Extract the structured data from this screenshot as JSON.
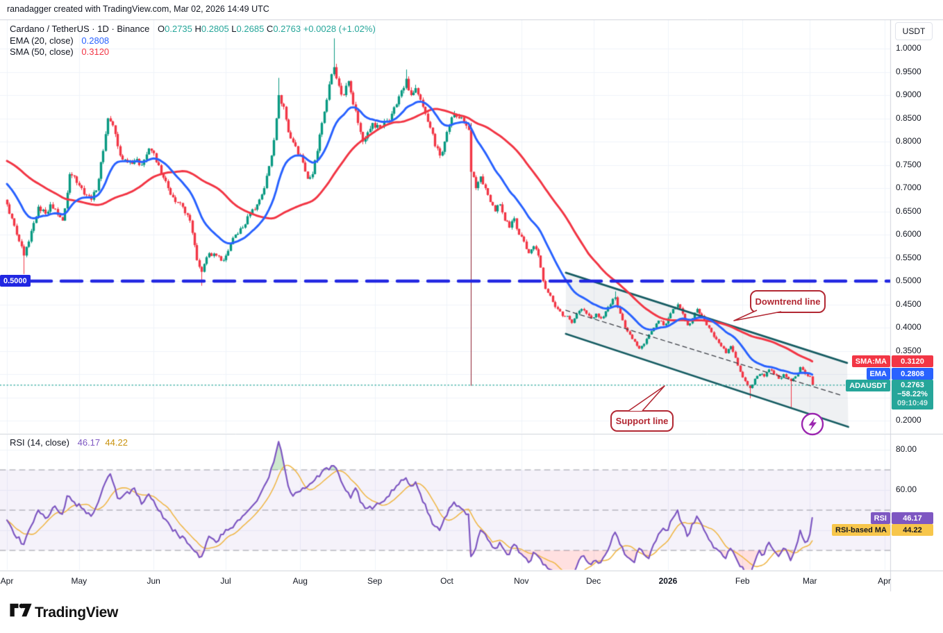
{
  "attribution": "ranadagger created with TradingView.com, Mar 02, 2026 14:49 UTC",
  "legend": {
    "symbol": "Cardano / TetherUS · 1D · Binance",
    "open_label": "O",
    "open": "0.2735",
    "high_label": "H",
    "high": "0.2805",
    "low_label": "L",
    "low": "0.2685",
    "close_label": "C",
    "close": "0.2763",
    "change": "+0.0028 (+1.02%)",
    "ema_label": "EMA (20, close)",
    "ema_value": "0.2808",
    "sma_label": "SMA (50, close)",
    "sma_value": "0.3120"
  },
  "rsi_legend": {
    "label": "RSI (14, close)",
    "value": "46.17",
    "ma_value": "44.22"
  },
  "price_axis": {
    "currency": "USDT",
    "level_badge": "0.5000"
  },
  "badges": {
    "sma": {
      "label": "SMA:MA",
      "value": "0.3120"
    },
    "ema": {
      "label": "EMA",
      "value": "0.2808"
    },
    "symbol": {
      "label": "ADAUSDT",
      "price": "0.2763",
      "change": "−58.22%",
      "countdown": "09:10:49"
    },
    "rsi": {
      "label": "RSI",
      "value": "46.17"
    },
    "rsi_ma": {
      "label": "RSI-based MA",
      "value": "44.22"
    }
  },
  "annotations": {
    "downtrend_label": "Downtrend line",
    "support_label": "Support line"
  },
  "footer": {
    "brand": "TradingView"
  },
  "colors": {
    "text": "#131722",
    "up": "#089981",
    "down": "#f23645",
    "ema": "#2962ff",
    "sma": "#f23645",
    "ohlc_value": "#26a69a",
    "level": "#2127e2",
    "channel": "#175d63",
    "channel_fill": "rgba(130,145,160,0.13)",
    "mid_dash": "#3c3f46",
    "price_line": "#26a69a",
    "rsi": "#7e57c2",
    "rsi_ma": "#f0b84a",
    "rsi_ma_text": "#c9920e",
    "rsi_band_fill": "rgba(126,87,194,0.08)",
    "band_dash": "#9598a1",
    "overbought_fill": "rgba(76,175,80,0.28)",
    "oversold_fill": "rgba(255,82,82,0.18)",
    "grid": "#f0f3fa",
    "separator": "#d1d4dc",
    "badge_symbol": "#26a69a",
    "badge_yellow": "#f7c64b",
    "annotation": "#b22833",
    "lightning": "#9c27b0"
  },
  "chart_data": {
    "type": "candlestick",
    "symbol": "ADAUSDT",
    "exchange": "Binance",
    "interval": "1D",
    "title": "Cardano / TetherUS · 1D · Binance",
    "current": {
      "open": 0.2735,
      "high": 0.2805,
      "low": 0.2685,
      "close": 0.2763,
      "change": "+0.0028",
      "change_pct": "+1.02%"
    },
    "indicators": {
      "ema20": 0.2808,
      "sma50": 0.312,
      "rsi14": 46.17,
      "rsi_based_ma": 44.22
    },
    "horizontal_level": 0.5,
    "price_line": 0.2763,
    "price_ticks": [
      1.0,
      0.95,
      0.9,
      0.85,
      0.8,
      0.75,
      0.7,
      0.65,
      0.6,
      0.55,
      0.5,
      0.45,
      0.4,
      0.35,
      0.3,
      0.25,
      0.2
    ],
    "months": [
      {
        "label": "Apr",
        "day": 0,
        "bold": false
      },
      {
        "label": "May",
        "day": 30,
        "bold": false
      },
      {
        "label": "Jun",
        "day": 61,
        "bold": false
      },
      {
        "label": "Jul",
        "day": 91,
        "bold": false
      },
      {
        "label": "Aug",
        "day": 122,
        "bold": false
      },
      {
        "label": "Sep",
        "day": 153,
        "bold": false
      },
      {
        "label": "Oct",
        "day": 183,
        "bold": false
      },
      {
        "label": "Nov",
        "day": 214,
        "bold": false
      },
      {
        "label": "Dec",
        "day": 244,
        "bold": false
      },
      {
        "label": "2026",
        "day": 275,
        "bold": true
      },
      {
        "label": "Feb",
        "day": 306,
        "bold": false
      },
      {
        "label": "Mar",
        "day": 334,
        "bold": false
      },
      {
        "label": "Apr",
        "day": 365,
        "bold": false
      }
    ],
    "prehistory_keypoints": [
      [
        -50,
        0.78
      ],
      [
        -35,
        0.81
      ],
      [
        -20,
        0.76
      ],
      [
        -10,
        0.71
      ],
      [
        -5,
        0.695
      ],
      [
        -1,
        0.675
      ]
    ],
    "close_keypoints": [
      [
        0,
        0.665
      ],
      [
        2,
        0.635
      ],
      [
        4,
        0.6
      ],
      [
        7,
        0.555
      ],
      [
        9,
        0.585
      ],
      [
        11,
        0.625
      ],
      [
        13,
        0.66
      ],
      [
        16,
        0.645
      ],
      [
        18,
        0.665
      ],
      [
        20,
        0.655
      ],
      [
        23,
        0.63
      ],
      [
        25,
        0.69
      ],
      [
        26,
        0.73
      ],
      [
        28,
        0.725
      ],
      [
        31,
        0.7
      ],
      [
        33,
        0.685
      ],
      [
        35,
        0.675
      ],
      [
        37,
        0.695
      ],
      [
        38,
        0.72
      ],
      [
        40,
        0.78
      ],
      [
        42,
        0.85
      ],
      [
        44,
        0.835
      ],
      [
        46,
        0.79
      ],
      [
        47,
        0.77
      ],
      [
        50,
        0.755
      ],
      [
        53,
        0.76
      ],
      [
        56,
        0.75
      ],
      [
        59,
        0.785
      ],
      [
        61,
        0.775
      ],
      [
        64,
        0.73
      ],
      [
        67,
        0.7
      ],
      [
        70,
        0.67
      ],
      [
        73,
        0.66
      ],
      [
        76,
        0.63
      ],
      [
        79,
        0.545
      ],
      [
        81,
        0.52
      ],
      [
        84,
        0.56
      ],
      [
        87,
        0.555
      ],
      [
        90,
        0.545
      ],
      [
        92,
        0.565
      ],
      [
        95,
        0.6
      ],
      [
        98,
        0.615
      ],
      [
        101,
        0.645
      ],
      [
        104,
        0.665
      ],
      [
        107,
        0.7
      ],
      [
        110,
        0.77
      ],
      [
        112,
        0.85
      ],
      [
        113,
        0.9
      ],
      [
        115,
        0.875
      ],
      [
        117,
        0.82
      ],
      [
        120,
        0.79
      ],
      [
        123,
        0.755
      ],
      [
        125,
        0.72
      ],
      [
        127,
        0.73
      ],
      [
        129,
        0.78
      ],
      [
        131,
        0.84
      ],
      [
        133,
        0.89
      ],
      [
        135,
        0.945
      ],
      [
        136,
        0.96
      ],
      [
        138,
        0.92
      ],
      [
        140,
        0.9
      ],
      [
        142,
        0.93
      ],
      [
        144,
        0.88
      ],
      [
        146,
        0.84
      ],
      [
        148,
        0.8
      ],
      [
        150,
        0.82
      ],
      [
        152,
        0.84
      ],
      [
        155,
        0.83
      ],
      [
        158,
        0.845
      ],
      [
        160,
        0.86
      ],
      [
        162,
        0.88
      ],
      [
        164,
        0.91
      ],
      [
        166,
        0.935
      ],
      [
        168,
        0.9
      ],
      [
        170,
        0.915
      ],
      [
        172,
        0.89
      ],
      [
        174,
        0.86
      ],
      [
        176,
        0.83
      ],
      [
        178,
        0.79
      ],
      [
        180,
        0.77
      ],
      [
        182,
        0.8
      ],
      [
        184,
        0.835
      ],
      [
        186,
        0.86
      ],
      [
        188,
        0.85
      ],
      [
        190,
        0.84
      ],
      [
        192,
        0.825
      ],
      [
        193,
        0.735
      ],
      [
        195,
        0.7
      ],
      [
        197,
        0.725
      ],
      [
        199,
        0.7
      ],
      [
        201,
        0.67
      ],
      [
        203,
        0.65
      ],
      [
        205,
        0.665
      ],
      [
        207,
        0.63
      ],
      [
        209,
        0.615
      ],
      [
        211,
        0.635
      ],
      [
        213,
        0.6
      ],
      [
        215,
        0.585
      ],
      [
        217,
        0.56
      ],
      [
        219,
        0.575
      ],
      [
        221,
        0.555
      ],
      [
        223,
        0.5
      ],
      [
        225,
        0.475
      ],
      [
        227,
        0.455
      ],
      [
        229,
        0.44
      ],
      [
        231,
        0.425
      ],
      [
        233,
        0.425
      ],
      [
        235,
        0.41
      ],
      [
        237,
        0.43
      ],
      [
        239,
        0.44
      ],
      [
        241,
        0.43
      ],
      [
        243,
        0.42
      ],
      [
        245,
        0.43
      ],
      [
        247,
        0.42
      ],
      [
        249,
        0.435
      ],
      [
        251,
        0.45
      ],
      [
        253,
        0.465
      ],
      [
        255,
        0.43
      ],
      [
        257,
        0.4
      ],
      [
        259,
        0.385
      ],
      [
        261,
        0.37
      ],
      [
        263,
        0.355
      ],
      [
        265,
        0.365
      ],
      [
        267,
        0.385
      ],
      [
        269,
        0.4
      ],
      [
        271,
        0.415
      ],
      [
        273,
        0.405
      ],
      [
        275,
        0.42
      ],
      [
        277,
        0.44
      ],
      [
        279,
        0.45
      ],
      [
        281,
        0.43
      ],
      [
        283,
        0.405
      ],
      [
        285,
        0.42
      ],
      [
        287,
        0.44
      ],
      [
        289,
        0.425
      ],
      [
        291,
        0.405
      ],
      [
        293,
        0.39
      ],
      [
        295,
        0.375
      ],
      [
        297,
        0.36
      ],
      [
        299,
        0.345
      ],
      [
        301,
        0.36
      ],
      [
        303,
        0.335
      ],
      [
        305,
        0.305
      ],
      [
        307,
        0.285
      ],
      [
        309,
        0.27
      ],
      [
        311,
        0.29
      ],
      [
        313,
        0.3
      ],
      [
        315,
        0.295
      ],
      [
        317,
        0.31
      ],
      [
        319,
        0.3
      ],
      [
        321,
        0.29
      ],
      [
        323,
        0.3
      ],
      [
        325,
        0.29
      ],
      [
        326,
        0.285
      ],
      [
        328,
        0.295
      ],
      [
        330,
        0.315
      ],
      [
        332,
        0.3
      ],
      [
        334,
        0.295
      ],
      [
        335,
        0.2763
      ]
    ],
    "overrides": [
      {
        "d": 7,
        "low": 0.515
      },
      {
        "d": 81,
        "low": 0.49
      },
      {
        "d": 113,
        "high": 0.937
      },
      {
        "d": 136,
        "high": 1.022
      },
      {
        "d": 166,
        "high": 0.955
      },
      {
        "d": 253,
        "high": 0.478
      },
      {
        "d": 309,
        "low": 0.248
      },
      {
        "d": 326,
        "low": 0.228
      },
      {
        "d": 193,
        "open": 0.825,
        "high": 0.84,
        "low": 0.275,
        "close": 0.735,
        "wick_color": "#8e2030"
      }
    ],
    "channel": {
      "upper": [
        [
          232.5,
          0.518
        ],
        [
          349.5,
          0.324
        ]
      ],
      "lower": [
        [
          232.5,
          0.3866
        ],
        [
          350,
          0.1866
        ]
      ],
      "mid": [
        [
          232.5,
          0.4373
        ],
        [
          347.5,
          0.2537
        ]
      ]
    },
    "rsi_keypoints": [
      [
        0,
        45
      ],
      [
        3,
        38
      ],
      [
        7,
        33
      ],
      [
        10,
        42
      ],
      [
        13,
        50
      ],
      [
        16,
        46
      ],
      [
        20,
        52
      ],
      [
        23,
        48
      ],
      [
        25,
        57
      ],
      [
        28,
        54
      ],
      [
        31,
        51
      ],
      [
        35,
        47
      ],
      [
        38,
        54
      ],
      [
        41,
        64
      ],
      [
        43,
        68
      ],
      [
        46,
        56
      ],
      [
        49,
        58
      ],
      [
        53,
        61
      ],
      [
        56,
        53
      ],
      [
        59,
        58
      ],
      [
        62,
        52
      ],
      [
        65,
        46
      ],
      [
        68,
        42
      ],
      [
        71,
        38
      ],
      [
        74,
        36
      ],
      [
        77,
        31
      ],
      [
        79,
        29
      ],
      [
        81,
        27
      ],
      [
        84,
        37
      ],
      [
        87,
        34
      ],
      [
        90,
        38
      ],
      [
        93,
        41
      ],
      [
        96,
        45
      ],
      [
        99,
        48
      ],
      [
        102,
        52
      ],
      [
        105,
        57
      ],
      [
        108,
        64
      ],
      [
        110,
        71
      ],
      [
        112,
        79
      ],
      [
        113,
        84
      ],
      [
        114,
        80
      ],
      [
        115,
        74
      ],
      [
        117,
        62
      ],
      [
        119,
        57
      ],
      [
        121,
        59
      ],
      [
        123,
        61
      ],
      [
        126,
        63
      ],
      [
        129,
        67
      ],
      [
        131,
        69
      ],
      [
        133,
        71
      ],
      [
        135,
        72
      ],
      [
        136,
        72
      ],
      [
        138,
        68
      ],
      [
        140,
        62
      ],
      [
        143,
        56
      ],
      [
        145,
        61
      ],
      [
        147,
        54
      ],
      [
        150,
        51
      ],
      [
        153,
        52
      ],
      [
        156,
        54
      ],
      [
        159,
        57
      ],
      [
        162,
        62
      ],
      [
        164,
        65
      ],
      [
        166,
        66
      ],
      [
        168,
        62
      ],
      [
        170,
        64
      ],
      [
        172,
        58
      ],
      [
        174,
        53
      ],
      [
        176,
        47
      ],
      [
        178,
        42
      ],
      [
        180,
        40
      ],
      [
        182,
        46
      ],
      [
        184,
        51
      ],
      [
        186,
        54
      ],
      [
        188,
        52
      ],
      [
        190,
        50
      ],
      [
        192,
        48
      ],
      [
        193,
        27
      ],
      [
        195,
        31
      ],
      [
        197,
        40
      ],
      [
        199,
        38
      ],
      [
        201,
        34
      ],
      [
        203,
        31
      ],
      [
        205,
        34
      ],
      [
        207,
        30
      ],
      [
        209,
        28
      ],
      [
        211,
        33
      ],
      [
        213,
        29
      ],
      [
        215,
        27
      ],
      [
        217,
        24
      ],
      [
        219,
        29
      ],
      [
        221,
        27
      ],
      [
        223,
        23
      ],
      [
        225,
        21
      ],
      [
        227,
        20
      ],
      [
        229,
        18
      ],
      [
        231,
        16
      ],
      [
        233,
        17
      ],
      [
        235,
        15
      ],
      [
        237,
        22
      ],
      [
        239,
        27
      ],
      [
        241,
        25
      ],
      [
        243,
        23
      ],
      [
        245,
        25
      ],
      [
        247,
        24
      ],
      [
        249,
        28
      ],
      [
        251,
        33
      ],
      [
        253,
        39
      ],
      [
        255,
        33
      ],
      [
        257,
        28
      ],
      [
        259,
        26
      ],
      [
        261,
        24
      ],
      [
        263,
        31
      ],
      [
        265,
        28
      ],
      [
        267,
        26
      ],
      [
        269,
        33
      ],
      [
        271,
        38
      ],
      [
        273,
        41
      ],
      [
        275,
        40
      ],
      [
        277,
        46
      ],
      [
        279,
        50
      ],
      [
        281,
        43
      ],
      [
        283,
        37
      ],
      [
        285,
        43
      ],
      [
        287,
        47
      ],
      [
        289,
        43
      ],
      [
        291,
        38
      ],
      [
        293,
        34
      ],
      [
        295,
        31
      ],
      [
        297,
        29
      ],
      [
        299,
        26
      ],
      [
        301,
        31
      ],
      [
        303,
        27
      ],
      [
        305,
        22
      ],
      [
        307,
        19
      ],
      [
        309,
        15
      ],
      [
        311,
        24
      ],
      [
        313,
        30
      ],
      [
        315,
        28
      ],
      [
        317,
        34
      ],
      [
        319,
        30
      ],
      [
        321,
        27
      ],
      [
        323,
        31
      ],
      [
        325,
        28
      ],
      [
        326,
        25
      ],
      [
        328,
        31
      ],
      [
        330,
        40
      ],
      [
        332,
        34
      ],
      [
        334,
        38
      ],
      [
        335,
        46.17
      ]
    ],
    "rsi_bands": {
      "upper": 70,
      "middle": 50,
      "lower": 30
    },
    "rsi_ticks": [
      80,
      60
    ],
    "rsi_grid": [
      80,
      60,
      40,
      20
    ]
  }
}
